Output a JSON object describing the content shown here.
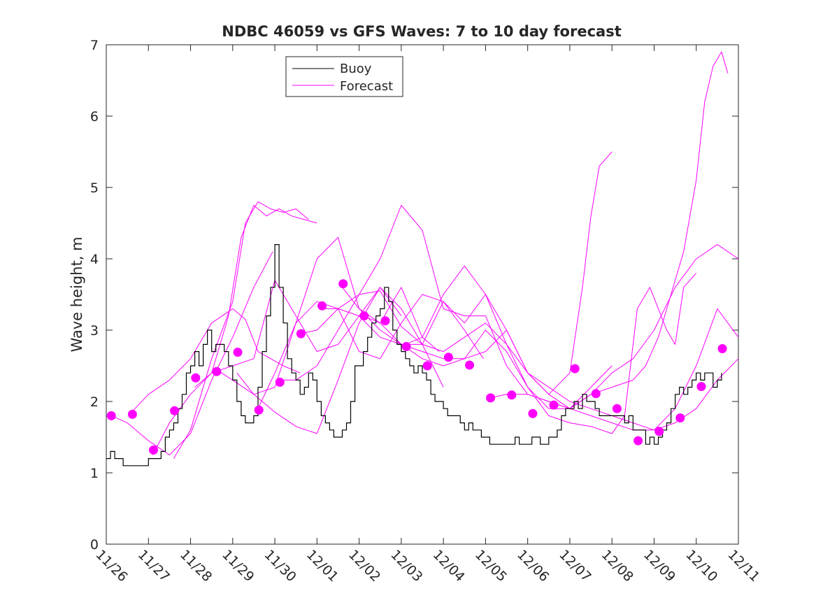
{
  "chart_data": {
    "type": "line",
    "title": "NDBC 46059 vs GFS Waves: 7 to 10 day forecast",
    "xlabel": "",
    "ylabel": "Wave height, m",
    "xlim": [
      0,
      15
    ],
    "ylim": [
      0,
      7
    ],
    "x_tick_labels": [
      "11/26",
      "11/27",
      "11/28",
      "11/29",
      "11/30",
      "12/01",
      "12/02",
      "12/03",
      "12/04",
      "12/05",
      "12/06",
      "12/07",
      "12/08",
      "12/09",
      "12/10",
      "12/11"
    ],
    "y_ticks": [
      0,
      1,
      2,
      3,
      4,
      5,
      6,
      7
    ],
    "legend": {
      "placement": "top-left",
      "entries": [
        "Buoy",
        "Forecast"
      ]
    },
    "colors": {
      "buoy": "#000000",
      "forecast": "#ff00ff",
      "axis": "#262626"
    },
    "buoy": {
      "name": "Buoy",
      "x": [
        0,
        0.1,
        0.2,
        0.3,
        0.4,
        0.5,
        0.6,
        0.7,
        0.8,
        0.9,
        1.0,
        1.1,
        1.2,
        1.3,
        1.4,
        1.5,
        1.6,
        1.7,
        1.8,
        1.9,
        2.0,
        2.1,
        2.2,
        2.3,
        2.4,
        2.5,
        2.6,
        2.7,
        2.8,
        2.9,
        3.0,
        3.1,
        3.2,
        3.3,
        3.4,
        3.5,
        3.6,
        3.7,
        3.8,
        3.9,
        4.0,
        4.1,
        4.2,
        4.3,
        4.4,
        4.5,
        4.6,
        4.7,
        4.8,
        4.9,
        5.0,
        5.1,
        5.2,
        5.3,
        5.4,
        5.5,
        5.6,
        5.7,
        5.8,
        5.9,
        6.0,
        6.1,
        6.2,
        6.3,
        6.4,
        6.5,
        6.6,
        6.7,
        6.8,
        6.9,
        7.0,
        7.1,
        7.2,
        7.3,
        7.4,
        7.5,
        7.6,
        7.7,
        7.8,
        7.9,
        8.0,
        8.1,
        8.2,
        8.3,
        8.4,
        8.5,
        8.6,
        8.7,
        8.8,
        8.9,
        9.0,
        9.1,
        9.2,
        9.3,
        9.4,
        9.5,
        9.6,
        9.7,
        9.8,
        9.9,
        10.0,
        10.1,
        10.2,
        10.3,
        10.4,
        10.5,
        10.6,
        10.7,
        10.8,
        10.9,
        11.0,
        11.1,
        11.2,
        11.3,
        11.4,
        11.5,
        11.6,
        11.7,
        11.8,
        11.9,
        12.0,
        12.1,
        12.2,
        12.3,
        12.4,
        12.5,
        12.6,
        12.7,
        12.8,
        12.9,
        13.0,
        13.1,
        13.2,
        13.3,
        13.4,
        13.5,
        13.6,
        13.7,
        13.8,
        13.9,
        14.0,
        14.1,
        14.2,
        14.3,
        14.4,
        14.5,
        14.6
      ],
      "values": [
        1.2,
        1.3,
        1.2,
        1.2,
        1.1,
        1.1,
        1.1,
        1.1,
        1.1,
        1.1,
        1.2,
        1.2,
        1.2,
        1.3,
        1.5,
        1.6,
        1.7,
        1.9,
        2.1,
        2.4,
        2.5,
        2.7,
        2.5,
        2.8,
        3.0,
        2.7,
        2.8,
        2.8,
        2.7,
        2.5,
        2.3,
        2.0,
        1.8,
        1.7,
        1.7,
        1.8,
        2.2,
        2.7,
        3.2,
        3.6,
        4.2,
        3.6,
        3.1,
        2.6,
        2.4,
        2.3,
        2.1,
        2.2,
        2.4,
        2.3,
        2.0,
        1.8,
        1.7,
        1.6,
        1.5,
        1.5,
        1.6,
        1.7,
        2.0,
        2.5,
        2.5,
        2.7,
        2.9,
        3.1,
        3.2,
        3.3,
        3.6,
        3.4,
        3.0,
        2.8,
        2.7,
        2.6,
        2.5,
        2.4,
        2.5,
        2.4,
        2.3,
        2.1,
        2.0,
        2.0,
        1.9,
        1.8,
        1.8,
        1.8,
        1.7,
        1.6,
        1.7,
        1.6,
        1.6,
        1.5,
        1.5,
        1.4,
        1.4,
        1.4,
        1.4,
        1.4,
        1.4,
        1.5,
        1.4,
        1.4,
        1.4,
        1.5,
        1.5,
        1.4,
        1.4,
        1.5,
        1.5,
        1.6,
        1.8,
        1.9,
        1.9,
        2.0,
        1.9,
        2.1,
        2.0,
        2.0,
        1.9,
        1.8,
        1.8,
        1.8,
        1.8,
        1.8,
        1.8,
        1.7,
        1.8,
        1.6,
        1.6,
        1.6,
        1.4,
        1.5,
        1.4,
        1.5,
        1.6,
        1.7,
        1.9,
        2.1,
        2.2,
        2.1,
        2.2,
        2.3,
        2.4,
        2.3,
        2.4,
        2.4,
        2.2,
        2.3,
        2.4
      ]
    },
    "forecast_points": {
      "name": "Forecast",
      "x": [
        0.12,
        0.62,
        1.12,
        1.62,
        2.12,
        2.62,
        3.12,
        3.62,
        4.12,
        4.62,
        5.12,
        5.62,
        6.12,
        6.62,
        7.12,
        7.62,
        8.12,
        8.62,
        9.12,
        9.62,
        10.12,
        10.62,
        11.12,
        11.62,
        12.12,
        12.62,
        13.12,
        13.62,
        14.12,
        14.62
      ],
      "values": [
        1.8,
        1.82,
        1.32,
        1.87,
        2.33,
        2.42,
        2.69,
        1.88,
        2.27,
        2.95,
        3.34,
        3.65,
        3.2,
        3.13,
        2.77,
        2.5,
        2.62,
        2.51,
        2.05,
        2.09,
        1.83,
        1.95,
        2.46,
        2.11,
        1.9,
        1.45,
        1.58,
        1.77,
        2.21,
        2.74
      ]
    },
    "forecast_runs": [
      {
        "x": [
          0.12,
          0.5,
          1.0,
          1.5,
          2.0,
          2.5,
          3.0,
          3.5,
          3.95
        ],
        "values": [
          1.8,
          1.7,
          1.45,
          1.25,
          1.55,
          2.3,
          2.9,
          3.6,
          4.1
        ]
      },
      {
        "x": [
          0.6,
          1.0,
          1.5,
          2.0,
          2.5,
          3.0,
          3.3,
          3.6,
          4.2,
          4.6
        ],
        "values": [
          1.85,
          2.1,
          2.3,
          2.6,
          3.1,
          3.3,
          3.15,
          2.7,
          2.5,
          2.4
        ]
      },
      {
        "x": [
          1.1,
          1.5,
          2.0,
          2.5,
          2.9,
          3.2,
          3.5,
          3.8,
          4.1,
          4.4,
          4.7,
          5.0
        ],
        "values": [
          1.25,
          1.7,
          2.1,
          2.4,
          3.2,
          4.3,
          4.75,
          4.6,
          4.7,
          4.6,
          4.55,
          4.5
        ]
      },
      {
        "x": [
          1.6,
          2.0,
          2.5,
          3.0,
          3.3,
          3.6,
          3.9,
          4.2,
          4.5,
          4.8
        ],
        "values": [
          1.2,
          1.6,
          2.6,
          3.4,
          4.5,
          4.8,
          4.7,
          4.65,
          4.7,
          4.55
        ]
      },
      {
        "x": [
          2.1,
          2.5,
          3.0,
          3.5,
          4.0,
          4.5,
          5.0,
          5.5,
          6.0,
          6.5,
          7.0
        ],
        "values": [
          2.2,
          2.4,
          2.5,
          2.6,
          3.7,
          3.2,
          2.7,
          2.8,
          3.2,
          3.6,
          3.2
        ]
      },
      {
        "x": [
          2.6,
          3.0,
          3.5,
          4.0,
          4.5,
          5.0,
          5.5,
          6.0,
          6.5,
          7.0,
          7.5,
          8.0
        ],
        "values": [
          2.45,
          2.3,
          2.1,
          1.85,
          1.65,
          1.55,
          2.3,
          3.1,
          3.6,
          3.3,
          2.8,
          2.2
        ]
      },
      {
        "x": [
          3.1,
          3.5,
          4.0,
          4.5,
          5.0,
          5.5,
          6.0,
          6.5,
          7.0,
          7.5,
          7.9
        ],
        "values": [
          2.4,
          2.1,
          2.2,
          3.1,
          4.0,
          4.3,
          3.3,
          3.1,
          3.6,
          2.9,
          2.7
        ]
      },
      {
        "x": [
          3.6,
          4.0,
          4.5,
          5.0,
          5.5,
          6.0,
          6.5,
          7.0,
          7.5,
          8.0,
          8.5,
          8.95
        ],
        "values": [
          1.9,
          2.4,
          3.1,
          3.4,
          3.3,
          2.7,
          2.6,
          3.1,
          3.5,
          3.4,
          3.0,
          2.6
        ]
      },
      {
        "x": [
          4.1,
          4.5,
          5.0,
          5.5,
          6.0,
          6.5,
          7.0,
          7.5,
          8.0,
          8.5,
          9.0,
          9.5,
          10.0,
          10.5,
          11.0,
          11.5,
          12.0,
          12.5,
          13.0,
          13.5,
          14.0,
          14.5,
          15.0
        ],
        "values": [
          2.3,
          2.3,
          2.5,
          3.0,
          3.5,
          3.55,
          3.05,
          2.8,
          2.7,
          2.9,
          3.1,
          2.8,
          2.4,
          2.1,
          1.9,
          1.8,
          1.7,
          1.6,
          1.6,
          1.7,
          1.9,
          2.3,
          2.6
        ]
      },
      {
        "x": [
          4.6,
          5.0,
          5.5,
          6.0,
          6.5,
          7.0,
          7.5,
          8.0,
          8.5,
          9.0,
          9.5,
          10.0,
          10.5,
          11.0,
          11.5,
          12.0
        ],
        "values": [
          2.95,
          3.0,
          3.3,
          3.5,
          4.0,
          4.75,
          4.4,
          3.3,
          3.2,
          3.2,
          2.5,
          2.1,
          2.0,
          1.9,
          2.2,
          2.5
        ]
      },
      {
        "x": [
          5.1,
          5.5,
          6.0,
          6.5,
          7.0,
          7.5,
          8.0,
          8.5,
          9.0,
          9.5,
          10.0,
          10.5,
          11.0,
          11.3,
          11.5,
          11.7,
          12.0
        ],
        "values": [
          3.3,
          3.3,
          3.2,
          2.9,
          2.8,
          2.8,
          3.4,
          3.1,
          3.5,
          3.0,
          2.4,
          2.1,
          2.4,
          3.6,
          4.6,
          5.3,
          5.5
        ]
      },
      {
        "x": [
          5.6,
          6.0,
          6.5,
          7.0,
          7.5,
          8.0,
          8.5,
          9.0,
          9.5,
          10.0,
          10.5,
          11.0,
          11.5,
          12.0,
          12.3,
          12.6,
          12.9,
          13.1,
          13.3,
          13.5,
          13.7,
          14.0
        ],
        "values": [
          3.6,
          3.3,
          3.0,
          2.8,
          2.6,
          2.5,
          2.6,
          3.0,
          2.7,
          2.2,
          1.8,
          1.7,
          1.65,
          1.55,
          1.8,
          3.3,
          3.6,
          3.3,
          3.0,
          2.8,
          3.6,
          3.8
        ]
      },
      {
        "x": [
          6.1,
          6.5,
          7.0,
          7.5,
          8.0,
          8.5,
          9.0,
          9.5,
          10.0,
          10.5,
          11.0,
          11.5,
          12.0,
          12.5,
          13.0,
          13.5,
          14.0,
          14.5,
          15.0
        ],
        "values": [
          3.2,
          3.1,
          2.8,
          2.7,
          2.6,
          2.6,
          2.7,
          3.0,
          2.4,
          2.2,
          2.0,
          1.9,
          1.8,
          1.7,
          1.6,
          1.9,
          2.5,
          3.3,
          2.9
        ]
      },
      {
        "x": [
          7.1,
          7.5,
          8.0,
          8.5,
          9.0,
          9.5,
          10.0,
          10.5,
          11.0,
          11.5,
          12.0,
          12.5,
          13.0,
          13.5,
          14.0,
          14.5,
          15.0
        ],
        "values": [
          2.8,
          2.9,
          3.5,
          3.9,
          3.5,
          2.8,
          2.2,
          1.9,
          1.9,
          2.1,
          2.4,
          2.6,
          3.0,
          3.6,
          4.0,
          4.2,
          4.0
        ]
      },
      {
        "x": [
          9.1,
          9.5,
          10.0,
          10.5,
          11.0,
          11.5,
          12.0,
          12.5,
          12.8,
          13.1,
          13.4,
          13.7,
          14.0,
          14.2,
          14.4,
          14.6,
          14.75
        ],
        "values": [
          2.05,
          2.1,
          2.1,
          2.0,
          1.9,
          2.1,
          2.2,
          2.3,
          2.5,
          2.9,
          3.5,
          4.1,
          5.1,
          6.2,
          6.7,
          6.9,
          6.6
        ]
      }
    ]
  }
}
